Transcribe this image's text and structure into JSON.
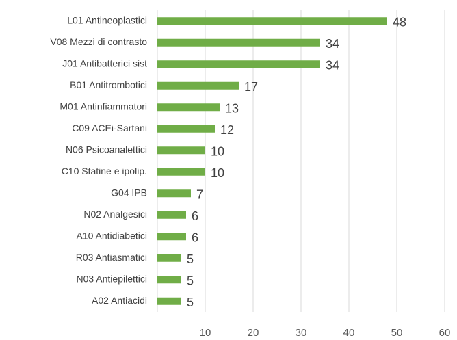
{
  "chart_data": {
    "type": "bar",
    "orientation": "horizontal",
    "categories": [
      "L01 Antineoplastici",
      "V08 Mezzi di contrasto",
      "J01 Antibatterici sist",
      "B01 Antitrombotici",
      "M01 Antinfiammatori",
      "C09 ACEi-Sartani",
      "N06 Psicoanalettici",
      "C10 Statine e ipolip.",
      "G04 IPB",
      "N02 Analgesici",
      "A10 Antidiabetici",
      "R03 Antiasmatici",
      "N03 Antiepilettici",
      "A02 Antiacidi"
    ],
    "values": [
      48,
      34,
      34,
      17,
      13,
      12,
      10,
      10,
      7,
      6,
      6,
      5,
      5,
      5
    ],
    "color": "#70ad47",
    "xlim": [
      0,
      60
    ],
    "xticks": [
      10,
      20,
      30,
      40,
      50,
      60
    ],
    "grid": true
  }
}
